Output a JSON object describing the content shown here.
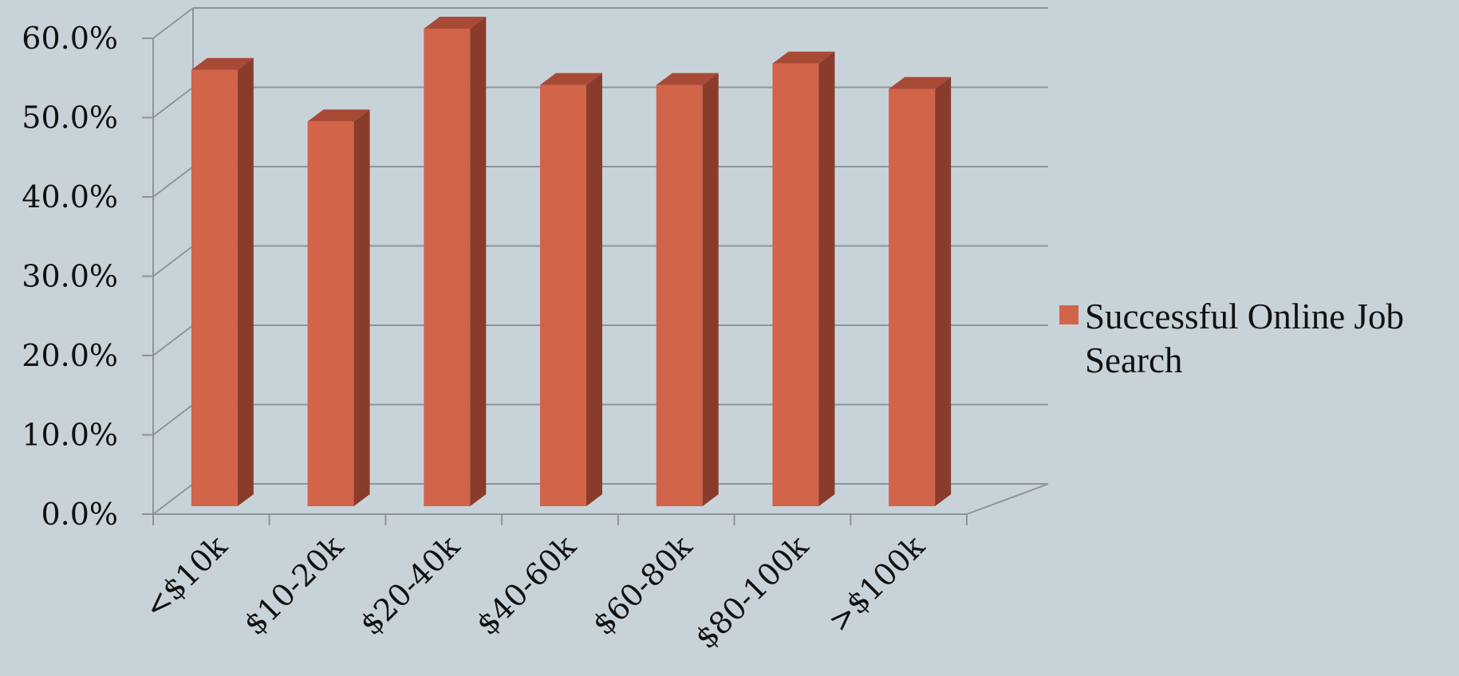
{
  "chart_data": {
    "type": "bar",
    "style": "3d",
    "categories": [
      "<$10k",
      "$10-20k",
      "$20-40k",
      "$40-60k",
      "$60-80k",
      "$80-100k",
      ">$100k"
    ],
    "series": [
      {
        "name": "Successful Online Job Search",
        "values": [
          55.0,
          48.5,
          60.2,
          53.1,
          53.1,
          55.8,
          52.6
        ]
      }
    ],
    "ylim": [
      0,
      60
    ],
    "yticks": [
      "0.0%",
      "10.0%",
      "20.0%",
      "30.0%",
      "40.0%",
      "50.0%",
      "60.0%"
    ],
    "grid": true,
    "legend_position": "right",
    "colors": {
      "bar_front": "#d2644a",
      "bar_top": "#a84a36",
      "bar_side": "#8a3c2c",
      "grid": "#8c9499",
      "background": "#c8d3d9"
    }
  }
}
